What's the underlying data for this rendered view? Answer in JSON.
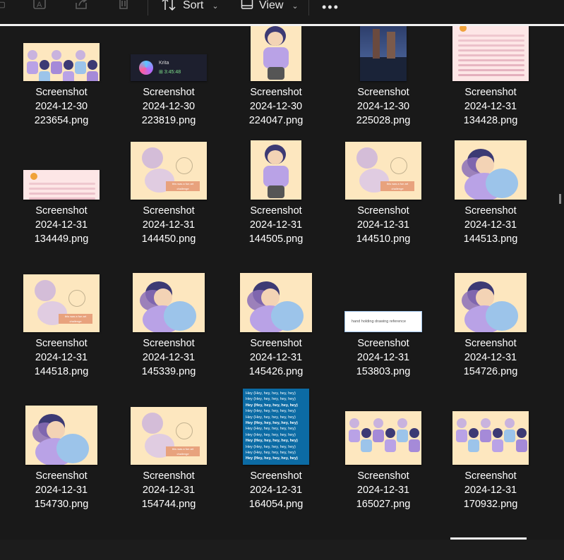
{
  "toolbar": {
    "sort_label": "Sort",
    "view_label": "View",
    "more_label": "•••"
  },
  "files": [
    {
      "name_line1": "Screenshot",
      "name_line2": "2024-12-30",
      "name_line3": "223654.png",
      "thumb": "art-wide"
    },
    {
      "name_line1": "Screenshot",
      "name_line2": "2024-12-30",
      "name_line3": "223819.png",
      "thumb": "krita"
    },
    {
      "name_line1": "Screenshot",
      "name_line2": "2024-12-30",
      "name_line3": "224047.png",
      "thumb": "art-tall"
    },
    {
      "name_line1": "Screenshot",
      "name_line2": "2024-12-30",
      "name_line3": "225028.png",
      "thumb": "photo"
    },
    {
      "name_line1": "Screenshot",
      "name_line2": "2024-12-31",
      "name_line3": "134428.png",
      "thumb": "chat"
    },
    {
      "name_line1": "Screenshot",
      "name_line2": "2024-12-31",
      "name_line3": "134449.png",
      "thumb": "chat-wide"
    },
    {
      "name_line1": "Screenshot",
      "name_line2": "2024-12-31",
      "name_line3": "144450.png",
      "thumb": "art"
    },
    {
      "name_line1": "Screenshot",
      "name_line2": "2024-12-31",
      "name_line3": "144505.png",
      "thumb": "art-tall"
    },
    {
      "name_line1": "Screenshot",
      "name_line2": "2024-12-31",
      "name_line3": "144510.png",
      "thumb": "art"
    },
    {
      "name_line1": "Screenshot",
      "name_line2": "2024-12-31",
      "name_line3": "144513.png",
      "thumb": "art-sq"
    },
    {
      "name_line1": "Screenshot",
      "name_line2": "2024-12-31",
      "name_line3": "144518.png",
      "thumb": "art"
    },
    {
      "name_line1": "Screenshot",
      "name_line2": "2024-12-31",
      "name_line3": "145339.png",
      "thumb": "art-sq"
    },
    {
      "name_line1": "Screenshot",
      "name_line2": "2024-12-31",
      "name_line3": "145426.png",
      "thumb": "art-sq"
    },
    {
      "name_line1": "Screenshot",
      "name_line2": "2024-12-31",
      "name_line3": "153803.png",
      "thumb": "search"
    },
    {
      "name_line1": "Screenshot",
      "name_line2": "2024-12-31",
      "name_line3": "154726.png",
      "thumb": "art-sq"
    },
    {
      "name_line1": "Screenshot",
      "name_line2": "2024-12-31",
      "name_line3": "154730.png",
      "thumb": "art-sq"
    },
    {
      "name_line1": "Screenshot",
      "name_line2": "2024-12-31",
      "name_line3": "154744.png",
      "thumb": "art"
    },
    {
      "name_line1": "Screenshot",
      "name_line2": "2024-12-31",
      "name_line3": "164054.png",
      "thumb": "lyrics"
    },
    {
      "name_line1": "Screenshot",
      "name_line2": "2024-12-31",
      "name_line3": "165027.png",
      "thumb": "art-wide2"
    },
    {
      "name_line1": "Screenshot",
      "name_line2": "2024-12-31",
      "name_line3": "170932.png",
      "thumb": "art-wide2"
    }
  ],
  "thumb_text": {
    "krita_title": "Krita",
    "krita_time": "3:45:48",
    "search_query": "hand holding drawing reference",
    "lyrics_line": "Hey (Hey, hey, hey, hey, hey)",
    "art_caption": "this was a fun art challenge"
  }
}
